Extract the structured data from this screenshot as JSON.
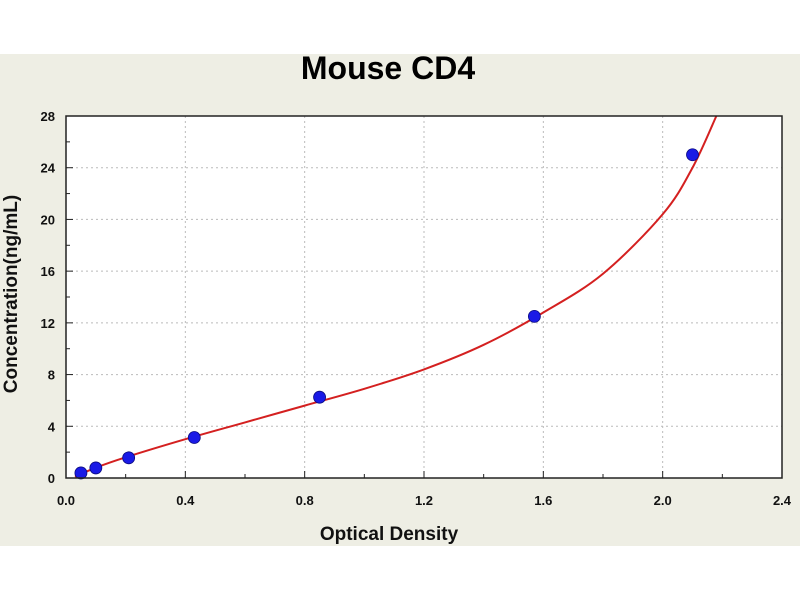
{
  "chart_data": {
    "type": "scatter",
    "title": "Mouse CD4",
    "xlabel": "Optical Density",
    "ylabel": "Concentration(ng/mL)",
    "xlim": [
      0,
      2.4
    ],
    "ylim": [
      0,
      28
    ],
    "xticks": [
      "0.0",
      "0.4",
      "0.8",
      "1.2",
      "1.6",
      "2.0",
      "2.4"
    ],
    "yticks": [
      "0",
      "4",
      "8",
      "12",
      "16",
      "20",
      "24",
      "28"
    ],
    "grid": true,
    "series": [
      {
        "kind": "points",
        "color": "#1a1ae6",
        "points": [
          {
            "x": 0.05,
            "y": 0.39
          },
          {
            "x": 0.1,
            "y": 0.78
          },
          {
            "x": 0.21,
            "y": 1.56
          },
          {
            "x": 0.43,
            "y": 3.13
          },
          {
            "x": 0.85,
            "y": 6.25
          },
          {
            "x": 1.57,
            "y": 12.5
          },
          {
            "x": 2.1,
            "y": 25.0
          }
        ]
      },
      {
        "kind": "fit-curve",
        "color": "#d42020",
        "points": [
          {
            "x": 0.03,
            "y": 0.1
          },
          {
            "x": 0.1,
            "y": 0.8
          },
          {
            "x": 0.2,
            "y": 1.6
          },
          {
            "x": 0.4,
            "y": 3.0
          },
          {
            "x": 0.6,
            "y": 4.3
          },
          {
            "x": 0.8,
            "y": 5.6
          },
          {
            "x": 1.0,
            "y": 6.9
          },
          {
            "x": 1.2,
            "y": 8.4
          },
          {
            "x": 1.4,
            "y": 10.3
          },
          {
            "x": 1.6,
            "y": 12.8
          },
          {
            "x": 1.8,
            "y": 15.8
          },
          {
            "x": 2.0,
            "y": 20.4
          },
          {
            "x": 2.1,
            "y": 24.0
          },
          {
            "x": 2.18,
            "y": 28.0
          }
        ]
      }
    ]
  }
}
